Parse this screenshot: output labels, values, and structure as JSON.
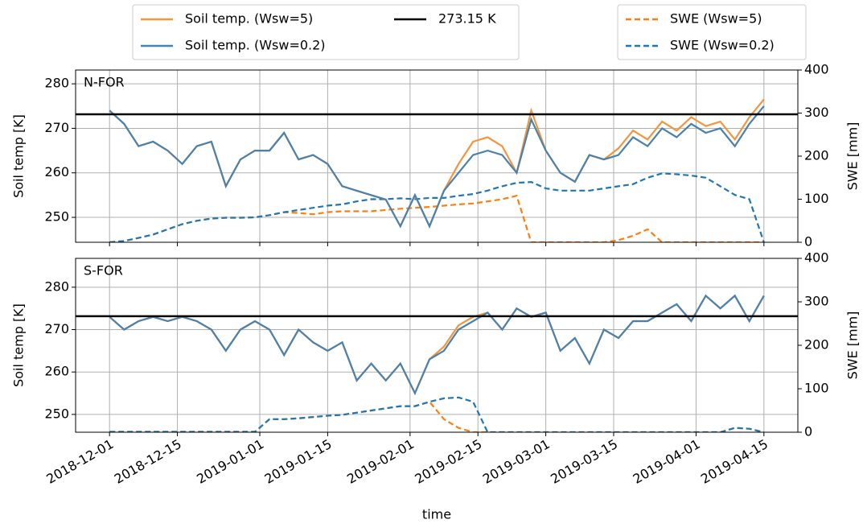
{
  "chart_data": {
    "type": "line",
    "xlabel": "time",
    "x": [
      "2018-12-01",
      "2018-12-04",
      "2018-12-07",
      "2018-12-10",
      "2018-12-13",
      "2018-12-16",
      "2018-12-19",
      "2018-12-22",
      "2018-12-25",
      "2018-12-28",
      "2018-12-31",
      "2019-01-03",
      "2019-01-06",
      "2019-01-09",
      "2019-01-12",
      "2019-01-15",
      "2019-01-18",
      "2019-01-21",
      "2019-01-24",
      "2019-01-27",
      "2019-01-30",
      "2019-02-02",
      "2019-02-05",
      "2019-02-08",
      "2019-02-11",
      "2019-02-14",
      "2019-02-17",
      "2019-02-20",
      "2019-02-23",
      "2019-02-26",
      "2019-03-01",
      "2019-03-04",
      "2019-03-07",
      "2019-03-10",
      "2019-03-13",
      "2019-03-16",
      "2019-03-19",
      "2019-03-22",
      "2019-03-25",
      "2019-03-28",
      "2019-03-31",
      "2019-04-03",
      "2019-04-06",
      "2019-04-09",
      "2019-04-12",
      "2019-04-15"
    ],
    "xlim": [
      "2018-11-24",
      "2019-04-22"
    ],
    "xticks": [
      "2018-12-01",
      "2018-12-15",
      "2019-01-01",
      "2019-01-15",
      "2019-02-01",
      "2019-02-15",
      "2019-03-01",
      "2019-03-15",
      "2019-04-01",
      "2019-04-15"
    ],
    "grid": true,
    "hline": {
      "value": 273.15,
      "label": "273.15 K",
      "color": "#000000"
    },
    "series": [
      {
        "name": "Soil temp. (Wsw=5)",
        "color": "#f5953a",
        "dashed": false,
        "axis": "y"
      },
      {
        "name": "Soil temp. (Wsw=0.2)",
        "color": "#4a81ad",
        "dashed": false,
        "axis": "y"
      },
      {
        "name": "SWE (Wsw=5)",
        "color": "#ff7f0e",
        "dashed": true,
        "axis": "y2"
      },
      {
        "name": "SWE (Wsw=0.2)",
        "color": "#1f77b4",
        "dashed": true,
        "axis": "y2"
      }
    ],
    "panels": [
      {
        "label": "N-FOR",
        "ylabel": "Soil temp [K]",
        "y2label": "SWE [mm]",
        "ylim": [
          244.4,
          283.1
        ],
        "yticks": [
          250,
          260,
          270,
          280
        ],
        "y2lim": [
          0,
          400
        ],
        "y2ticks": [
          0,
          100,
          200,
          300,
          400
        ],
        "values": [
          [
            274,
            271,
            266,
            267,
            265,
            262,
            266,
            267,
            257,
            263,
            265,
            265,
            269,
            263,
            264,
            262,
            257,
            256,
            255,
            254,
            248,
            255,
            248,
            256,
            262,
            267,
            268,
            266,
            260,
            274,
            265,
            260,
            258,
            264,
            263,
            265.5,
            269.5,
            267.5,
            271.5,
            269.5,
            272.5,
            270.5,
            271.5,
            267.5,
            272.5,
            276.5
          ],
          [
            274,
            271,
            266,
            267,
            265,
            262,
            266,
            267,
            257,
            263,
            265,
            265,
            269,
            263,
            264,
            262,
            257,
            256,
            255,
            254,
            248,
            255,
            248,
            256,
            260,
            264,
            265,
            264,
            260,
            272,
            265,
            260,
            258,
            264,
            263,
            264,
            268,
            266,
            270,
            268,
            271,
            269,
            270,
            266,
            271,
            275
          ],
          [
            0,
            3,
            10,
            18,
            30,
            42,
            50,
            55,
            57,
            57,
            58,
            63,
            70,
            68,
            65,
            70,
            72,
            72,
            72,
            75,
            78,
            80,
            82,
            85,
            88,
            90,
            95,
            100,
            108,
            0,
            0,
            0,
            0,
            0,
            0,
            5,
            15,
            30,
            0,
            0,
            0,
            0,
            0,
            0,
            0,
            0
          ],
          [
            0,
            3,
            10,
            18,
            30,
            42,
            50,
            55,
            57,
            57,
            58,
            63,
            70,
            75,
            80,
            85,
            88,
            95,
            100,
            100,
            102,
            100,
            103,
            103,
            108,
            112,
            120,
            130,
            138,
            140,
            125,
            120,
            120,
            120,
            125,
            130,
            135,
            150,
            160,
            158,
            155,
            150,
            130,
            110,
            100,
            0
          ]
        ]
      },
      {
        "label": "S-FOR",
        "ylabel": "Soil temp [K]",
        "y2label": "SWE [mm]",
        "ylim": [
          245.8,
          286.8
        ],
        "yticks": [
          250,
          260,
          270,
          280
        ],
        "y2lim": [
          0,
          400
        ],
        "y2ticks": [
          0,
          100,
          200,
          300,
          400
        ],
        "values": [
          [
            273,
            270,
            272,
            273,
            272,
            273,
            272,
            270,
            265,
            270,
            272,
            270,
            264,
            270,
            267,
            265,
            267,
            258,
            262,
            258,
            262,
            255,
            263,
            266,
            271,
            273,
            274,
            270,
            275,
            273,
            274,
            265,
            268,
            262,
            270,
            268,
            272,
            272,
            274,
            276,
            272,
            278,
            275,
            278,
            272,
            278
          ],
          [
            273,
            270,
            272,
            273,
            272,
            273,
            272,
            270,
            265,
            270,
            272,
            270,
            264,
            270,
            267,
            265,
            267,
            258,
            262,
            258,
            262,
            255,
            263,
            265,
            270,
            272,
            274,
            270,
            275,
            273,
            274,
            265,
            268,
            262,
            270,
            268,
            272,
            272,
            274,
            276,
            272,
            278,
            275,
            278,
            272,
            278
          ],
          [
            1,
            1,
            1,
            1,
            1,
            1,
            1,
            1,
            1,
            1,
            1,
            30,
            30,
            32,
            35,
            38,
            40,
            45,
            50,
            55,
            60,
            60,
            70,
            30,
            10,
            0,
            0,
            0,
            0,
            0,
            0,
            0,
            0,
            0,
            0,
            0,
            0,
            0,
            0,
            0,
            0,
            0,
            0,
            10,
            8,
            0
          ],
          [
            1,
            1,
            1,
            1,
            1,
            1,
            1,
            1,
            1,
            1,
            1,
            30,
            30,
            32,
            35,
            38,
            40,
            45,
            50,
            55,
            60,
            60,
            70,
            78,
            80,
            70,
            0,
            0,
            0,
            0,
            0,
            0,
            0,
            0,
            0,
            0,
            0,
            0,
            0,
            0,
            0,
            0,
            0,
            10,
            8,
            0
          ]
        ]
      }
    ]
  }
}
